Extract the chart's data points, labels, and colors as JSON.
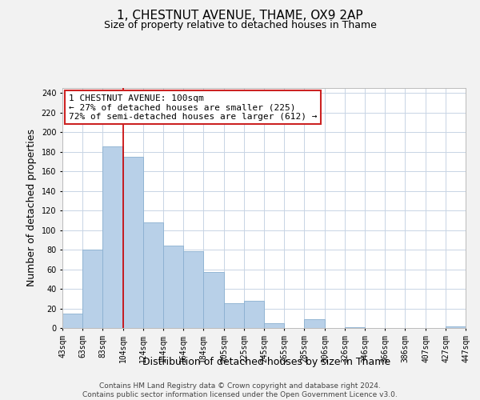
{
  "title": "1, CHESTNUT AVENUE, THAME, OX9 2AP",
  "subtitle": "Size of property relative to detached houses in Thame",
  "xlabel": "Distribution of detached houses by size in Thame",
  "ylabel": "Number of detached properties",
  "bar_color": "#b8d0e8",
  "bar_edge_color": "#8ab0d0",
  "vline_x": 104,
  "vline_color": "#cc0000",
  "bin_edges": [
    43,
    63,
    83,
    104,
    124,
    144,
    164,
    184,
    205,
    225,
    245,
    265,
    285,
    306,
    326,
    346,
    366,
    386,
    407,
    427,
    447
  ],
  "bar_heights": [
    15,
    80,
    185,
    175,
    108,
    84,
    78,
    57,
    25,
    28,
    5,
    0,
    9,
    0,
    1,
    0,
    0,
    0,
    0,
    2
  ],
  "tick_labels": [
    "43sqm",
    "63sqm",
    "83sqm",
    "104sqm",
    "124sqm",
    "144sqm",
    "164sqm",
    "184sqm",
    "205sqm",
    "225sqm",
    "245sqm",
    "265sqm",
    "285sqm",
    "306sqm",
    "326sqm",
    "346sqm",
    "366sqm",
    "386sqm",
    "407sqm",
    "427sqm",
    "447sqm"
  ],
  "ylim": [
    0,
    245
  ],
  "yticks": [
    0,
    20,
    40,
    60,
    80,
    100,
    120,
    140,
    160,
    180,
    200,
    220,
    240
  ],
  "annotation_line1": "1 CHESTNUT AVENUE: 100sqm",
  "annotation_line2": "← 27% of detached houses are smaller (225)",
  "annotation_line3": "72% of semi-detached houses are larger (612) →",
  "footer_text": "Contains HM Land Registry data © Crown copyright and database right 2024.\nContains public sector information licensed under the Open Government Licence v3.0.",
  "background_color": "#f2f2f2",
  "plot_background_color": "#ffffff",
  "grid_color": "#c8d4e4",
  "title_fontsize": 11,
  "subtitle_fontsize": 9,
  "axis_label_fontsize": 9,
  "tick_fontsize": 7,
  "footer_fontsize": 6.5
}
